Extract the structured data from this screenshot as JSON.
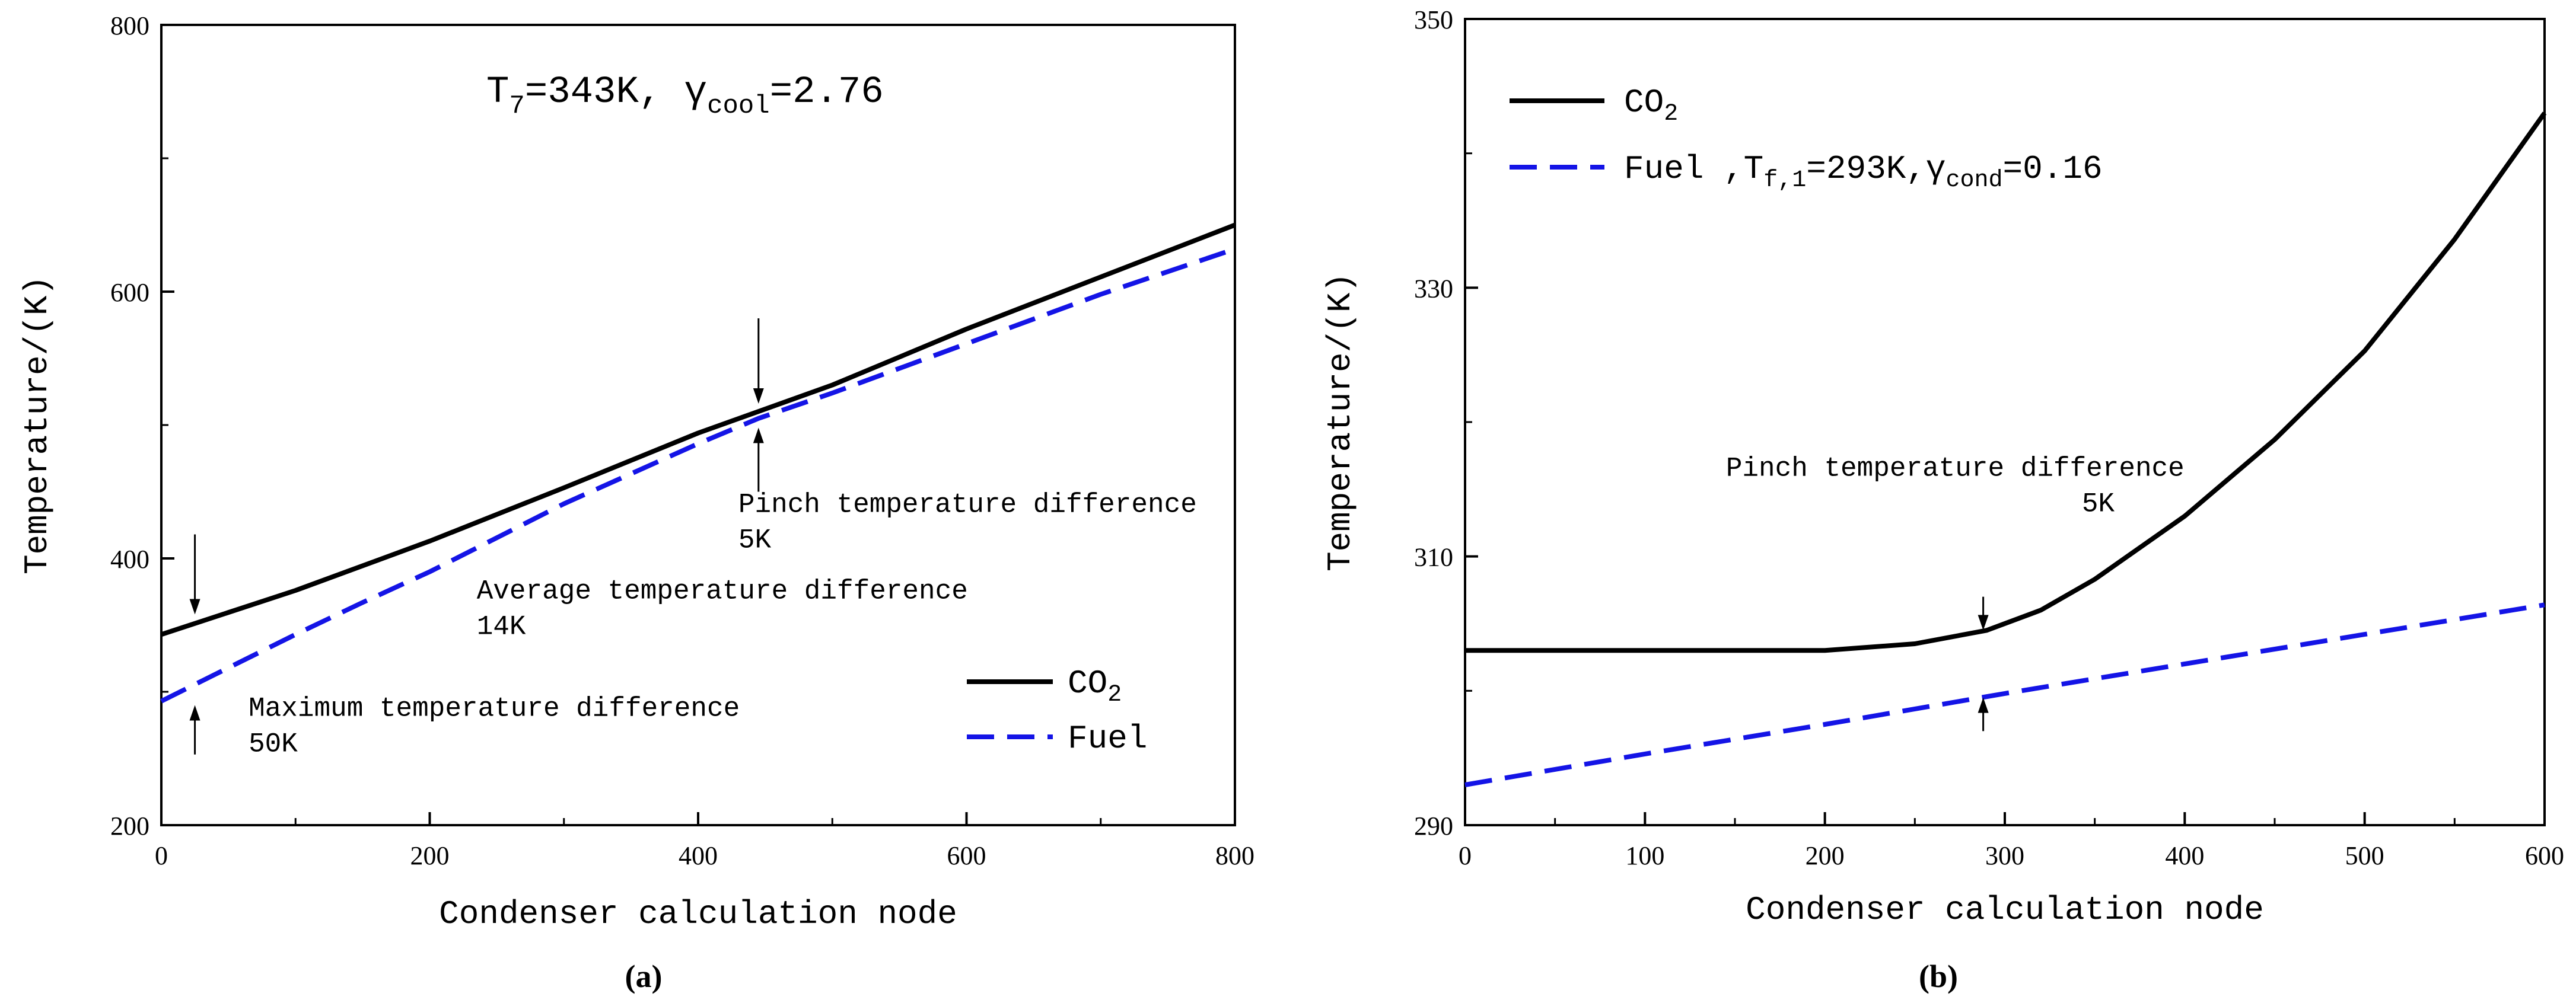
{
  "chart_data": [
    {
      "id": "a",
      "type": "line",
      "panel_label": "a",
      "title": "T",
      "title_sub": "7",
      "title_mid": "=343K,   γ",
      "title_sub2": "cool",
      "title_end": "=2.76",
      "xlabel": "Condenser calculation node",
      "ylabel": "Temperature/(K)",
      "xlim": [
        0,
        800
      ],
      "ylim": [
        200,
        800
      ],
      "xticks": [
        "0",
        "200",
        "400",
        "600",
        "800"
      ],
      "xtick_values": [
        0,
        200,
        400,
        600,
        800
      ],
      "yticks": [
        "200",
        "400",
        "600",
        "800"
      ],
      "ytick_values": [
        200,
        400,
        600,
        800
      ],
      "legend_position": "lower-right",
      "legend": [
        {
          "base": "CO",
          "sub": "2",
          "rest": ""
        },
        {
          "base": "Fuel",
          "sub": "",
          "rest": ""
        }
      ],
      "series": [
        {
          "name": "CO2",
          "color": "#000000",
          "style": "solid",
          "x": [
            0,
            100,
            200,
            300,
            400,
            500,
            600,
            700,
            800
          ],
          "y": [
            343,
            376,
            413,
            453,
            494,
            530,
            572,
            611,
            650
          ]
        },
        {
          "name": "Fuel",
          "color": "#1414e6",
          "style": "dashed",
          "x": [
            0,
            50,
            100,
            150,
            200,
            300,
            400,
            445,
            500,
            600,
            700,
            800
          ],
          "y": [
            293,
            318,
            343,
            367,
            390,
            441,
            486,
            505,
            524,
            561,
            598,
            632
          ]
        }
      ],
      "annotations": [
        {
          "lines": [
            "Pinch temperature difference",
            "5K"
          ],
          "x": 430,
          "y": 435,
          "arrow_x": 445,
          "arrow_top": 580,
          "arrow_top_end": 516,
          "arrow_bot": 450,
          "arrow_bot_end": 498
        },
        {
          "lines": [
            "Average temperature difference",
            "14K"
          ],
          "x": 235,
          "y": 370
        },
        {
          "lines": [
            "Maximum temperature difference",
            "50K"
          ],
          "x": 65,
          "y": 282,
          "arrow_x": 25,
          "arrow_top": 418,
          "arrow_top_end": 358,
          "arrow_bot": 253,
          "arrow_bot_end": 290
        }
      ]
    },
    {
      "id": "b",
      "type": "line",
      "panel_label": "b",
      "xlabel": "Condenser calculation node",
      "ylabel": "Temperature/(K)",
      "xlim": [
        0,
        600
      ],
      "ylim": [
        290,
        350
      ],
      "xticks": [
        "0",
        "100",
        "200",
        "300",
        "400",
        "500",
        "600"
      ],
      "xtick_values": [
        0,
        100,
        200,
        300,
        400,
        500,
        600
      ],
      "yticks": [
        "290",
        "310",
        "330",
        "350"
      ],
      "ytick_values": [
        290,
        310,
        330,
        350
      ],
      "legend_position": "top-left",
      "legend": [
        {
          "base": "CO",
          "sub": "2",
          "rest": ""
        },
        {
          "base": "Fuel ,T",
          "sub": "f,1",
          "rest": "=293K,γ",
          "sub2": "cond",
          "rest2": "=0.16"
        }
      ],
      "series": [
        {
          "name": "CO2",
          "color": "#000000",
          "style": "solid",
          "x": [
            0,
            100,
            200,
            250,
            290,
            320,
            350,
            400,
            450,
            500,
            550,
            600
          ],
          "y": [
            303,
            303,
            303,
            303.5,
            304.5,
            306,
            308.3,
            313,
            318.7,
            325.3,
            333.6,
            343
          ]
        },
        {
          "name": "Fuel",
          "color": "#1414e6",
          "style": "dashed",
          "x": [
            0,
            100,
            200,
            300,
            400,
            500,
            600
          ],
          "y": [
            293,
            295.3,
            297.5,
            299.8,
            302,
            304.2,
            306.4
          ]
        }
      ],
      "annotations": [
        {
          "lines": [
            "Pinch temperature difference",
            "5K"
          ],
          "x": 145,
          "y": 316,
          "arrow_x": 288,
          "arrow_top": 307,
          "arrow_top_end": 304.5,
          "arrow_bot": 297,
          "arrow_bot_end": 299.5
        }
      ]
    }
  ]
}
